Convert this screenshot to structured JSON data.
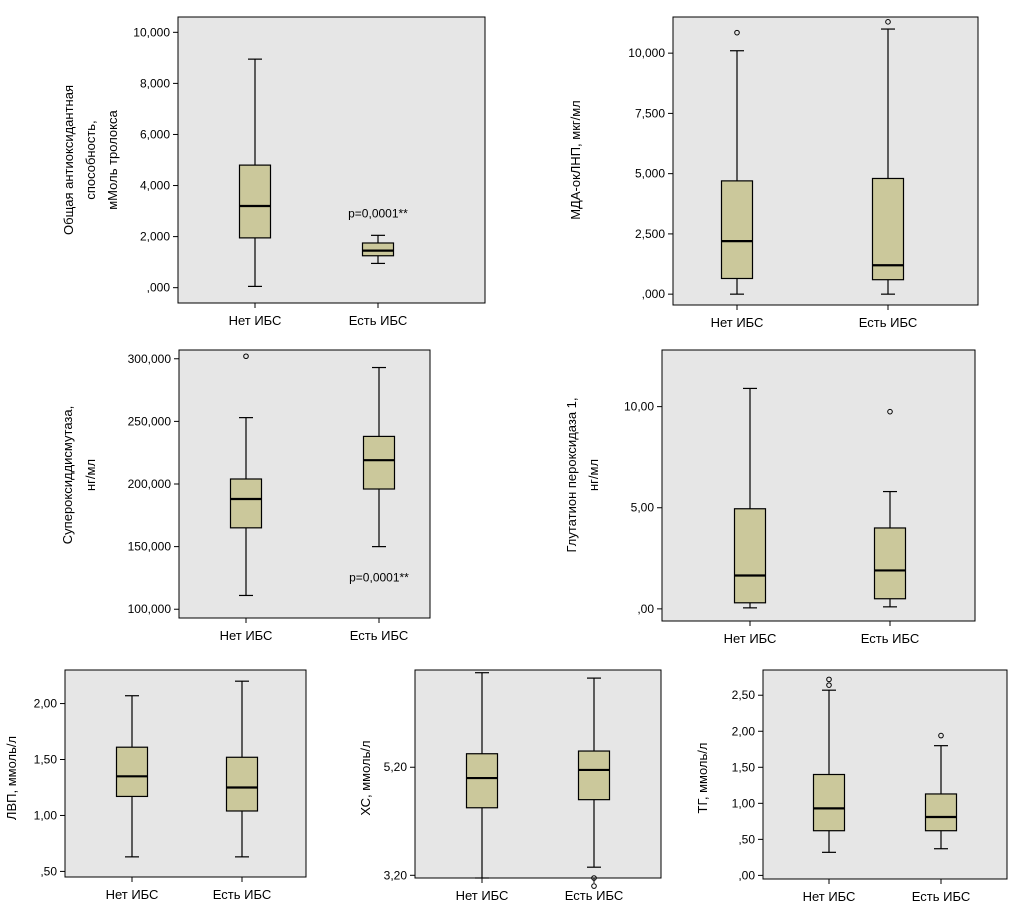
{
  "colors": {
    "plot_bg": "#e6e6e6",
    "box_fill": "#cbc89b",
    "stroke": "#000000"
  },
  "chart_data": [
    {
      "id": "p1",
      "type": "boxplot",
      "ylabel": [
        "Общая антиоксидантная",
        "способность,",
        "мМоль тролокса"
      ],
      "categories": [
        "Нет ИБС",
        "Есть ИБС"
      ],
      "ylim": [
        -0.6,
        10.6
      ],
      "yticks": [
        0,
        2,
        4,
        6,
        8,
        10
      ],
      "ytick_labels": [
        ",000",
        "2,000",
        "4,000",
        "6,000",
        "8,000",
        "10,000"
      ],
      "boxes": [
        {
          "min": 0.05,
          "q1": 1.95,
          "median": 3.2,
          "q3": 4.8,
          "max": 8.95,
          "outliers": []
        },
        {
          "min": 0.95,
          "q1": 1.25,
          "median": 1.45,
          "q3": 1.75,
          "max": 2.05,
          "outliers": []
        }
      ],
      "annotation": {
        "text": "p=0,0001**",
        "x_cat": 1,
        "y": 2.75
      }
    },
    {
      "id": "p2",
      "type": "boxplot",
      "ylabel": [
        "МДА-окЛНП, мкг/мл"
      ],
      "categories": [
        "Нет ИБС",
        "Есть ИБС"
      ],
      "ylim": [
        -0.45,
        11.5
      ],
      "yticks": [
        0,
        2.5,
        5,
        7.5,
        10
      ],
      "ytick_labels": [
        ",000",
        "2,500",
        "5,000",
        "7,500",
        "10,000"
      ],
      "boxes": [
        {
          "min": 0.0,
          "q1": 0.65,
          "median": 2.2,
          "q3": 4.7,
          "max": 10.1,
          "outliers": [
            10.85
          ]
        },
        {
          "min": 0.0,
          "q1": 0.6,
          "median": 1.2,
          "q3": 4.8,
          "max": 11.0,
          "outliers": [
            11.3
          ]
        }
      ],
      "annotation": null
    },
    {
      "id": "p3",
      "type": "boxplot",
      "ylabel": [
        "Супероксиддисмутаза,",
        "нг/мл"
      ],
      "categories": [
        "Нет ИБС",
        "Есть ИБС"
      ],
      "ylim": [
        93,
        307
      ],
      "yticks": [
        100,
        150,
        200,
        250,
        300
      ],
      "ytick_labels": [
        "100,000",
        "150,000",
        "200,000",
        "250,000",
        "300,000"
      ],
      "boxes": [
        {
          "min": 111,
          "q1": 165,
          "median": 188,
          "q3": 204,
          "max": 253,
          "outliers": [
            302
          ]
        },
        {
          "min": 150,
          "q1": 196,
          "median": 219,
          "q3": 238,
          "max": 293,
          "outliers": []
        }
      ],
      "annotation": {
        "text": "p=0,0001**",
        "x_cat": 1,
        "y": 122
      }
    },
    {
      "id": "p4",
      "type": "boxplot",
      "ylabel": [
        "Глутатион пероксидаза 1,",
        "нг/мл"
      ],
      "categories": [
        "Нет ИБС",
        "Есть ИБС"
      ],
      "ylim": [
        -0.6,
        12.8
      ],
      "yticks": [
        0,
        5,
        10
      ],
      "ytick_labels": [
        ",00",
        "5,00",
        "10,00"
      ],
      "boxes": [
        {
          "min": 0.05,
          "q1": 0.3,
          "median": 1.65,
          "q3": 4.95,
          "max": 10.9,
          "outliers": []
        },
        {
          "min": 0.1,
          "q1": 0.5,
          "median": 1.9,
          "q3": 4.0,
          "max": 5.8,
          "outliers": [
            9.75
          ]
        }
      ],
      "annotation": null
    },
    {
      "id": "p5",
      "type": "boxplot",
      "ylabel": [
        "ЛВП, ммоль/л"
      ],
      "categories": [
        "Нет ИБС",
        "Есть ИБС"
      ],
      "ylim": [
        0.45,
        2.3
      ],
      "yticks": [
        0.5,
        1.0,
        1.5,
        2.0
      ],
      "ytick_labels": [
        ",50",
        "1,00",
        "1,50",
        "2,00"
      ],
      "boxes": [
        {
          "min": 0.63,
          "q1": 1.17,
          "median": 1.35,
          "q3": 1.61,
          "max": 2.07,
          "outliers": []
        },
        {
          "min": 0.63,
          "q1": 1.04,
          "median": 1.25,
          "q3": 1.52,
          "max": 2.2,
          "outliers": []
        }
      ],
      "annotation": null
    },
    {
      "id": "p6",
      "type": "boxplot",
      "ylabel": [
        "ХС, ммоль/л"
      ],
      "categories": [
        "Нет ИБС",
        "Есть ИБС"
      ],
      "ylim": [
        3.15,
        7.0
      ],
      "yticks": [
        3.2,
        5.2
      ],
      "ytick_labels": [
        "3,20",
        "5,20"
      ],
      "boxes": [
        {
          "min": 3.15,
          "q1": 4.45,
          "median": 5.0,
          "q3": 5.45,
          "max": 6.95,
          "outliers": []
        },
        {
          "min": 3.35,
          "q1": 4.6,
          "median": 5.15,
          "q3": 5.5,
          "max": 6.85,
          "outliers": [
            3.15,
            3.0
          ]
        }
      ],
      "annotation": null
    },
    {
      "id": "p7",
      "type": "boxplot",
      "ylabel": [
        "ТГ, ммоль/л"
      ],
      "categories": [
        "Нет ИБС",
        "Есть ИБС"
      ],
      "ylim": [
        -0.05,
        2.85
      ],
      "yticks": [
        0,
        0.5,
        1.0,
        1.5,
        2.0,
        2.5
      ],
      "ytick_labels": [
        ",00",
        ",50",
        "1,00",
        "1,50",
        "2,00",
        "2,50"
      ],
      "boxes": [
        {
          "min": 0.32,
          "q1": 0.62,
          "median": 0.93,
          "q3": 1.4,
          "max": 2.57,
          "outliers": [
            2.64,
            2.72
          ]
        },
        {
          "min": 0.37,
          "q1": 0.62,
          "median": 0.81,
          "q3": 1.13,
          "max": 1.8,
          "outliers": [
            1.94
          ]
        }
      ],
      "annotation": null
    }
  ]
}
